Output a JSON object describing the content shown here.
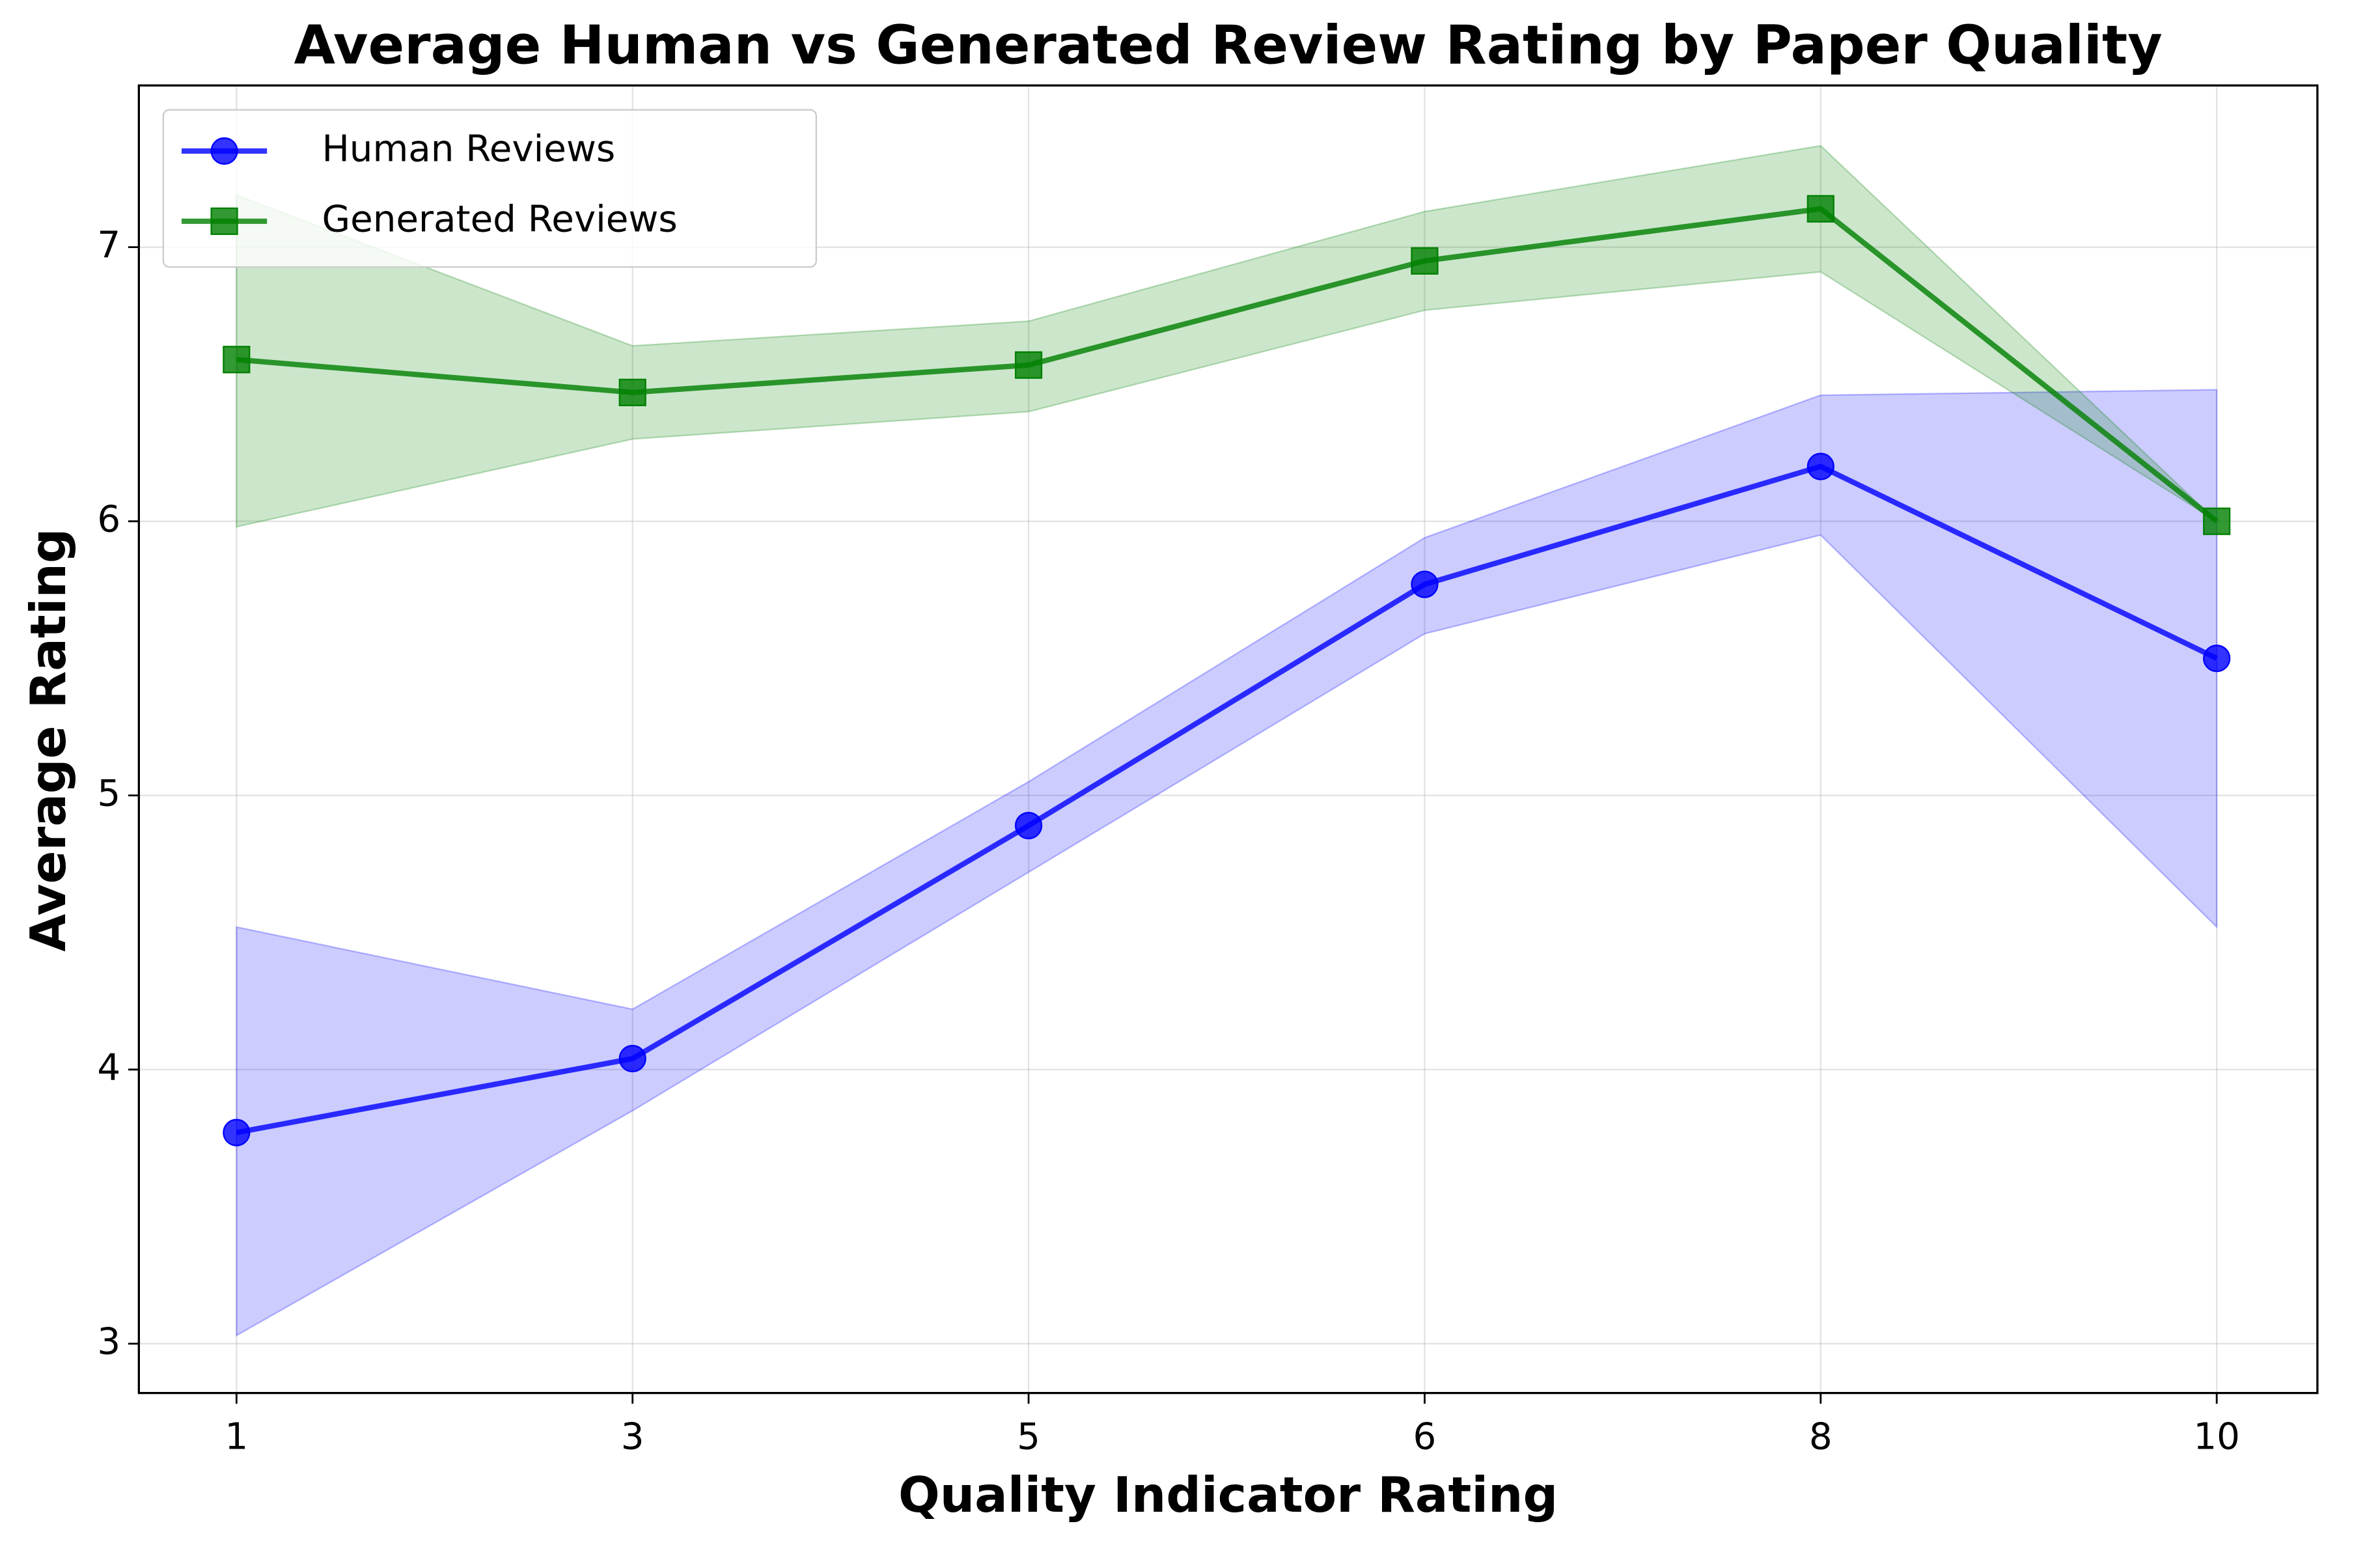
{
  "chart_data": {
    "type": "line",
    "title": "Average Human vs Generated Review Rating by Paper Quality",
    "x_label": "Quality Indicator Rating",
    "y_label": "Average Rating",
    "categories": [
      "1",
      "3",
      "5",
      "6",
      "8",
      "10"
    ],
    "series": [
      {
        "name": "Human Reviews",
        "color": "#0000ff",
        "marker": "circle",
        "values": [
          3.77,
          4.04,
          4.89,
          5.77,
          6.2,
          5.5
        ],
        "lower": [
          3.03,
          3.85,
          4.72,
          5.59,
          5.95,
          4.52
        ],
        "upper": [
          4.52,
          4.22,
          5.05,
          5.94,
          6.46,
          6.48
        ]
      },
      {
        "name": "Generated Reviews",
        "color": "#008000",
        "marker": "square",
        "values": [
          6.59,
          6.47,
          6.57,
          6.95,
          7.14,
          6.0
        ],
        "lower": [
          5.98,
          6.3,
          6.4,
          6.77,
          6.91,
          6.0
        ],
        "upper": [
          7.19,
          6.64,
          6.73,
          7.13,
          7.37,
          6.0
        ]
      }
    ],
    "ylim": [
      2.82,
      7.59
    ],
    "yticks": [
      3,
      4,
      5,
      6,
      7
    ],
    "grid": true,
    "legend": "upper left"
  }
}
